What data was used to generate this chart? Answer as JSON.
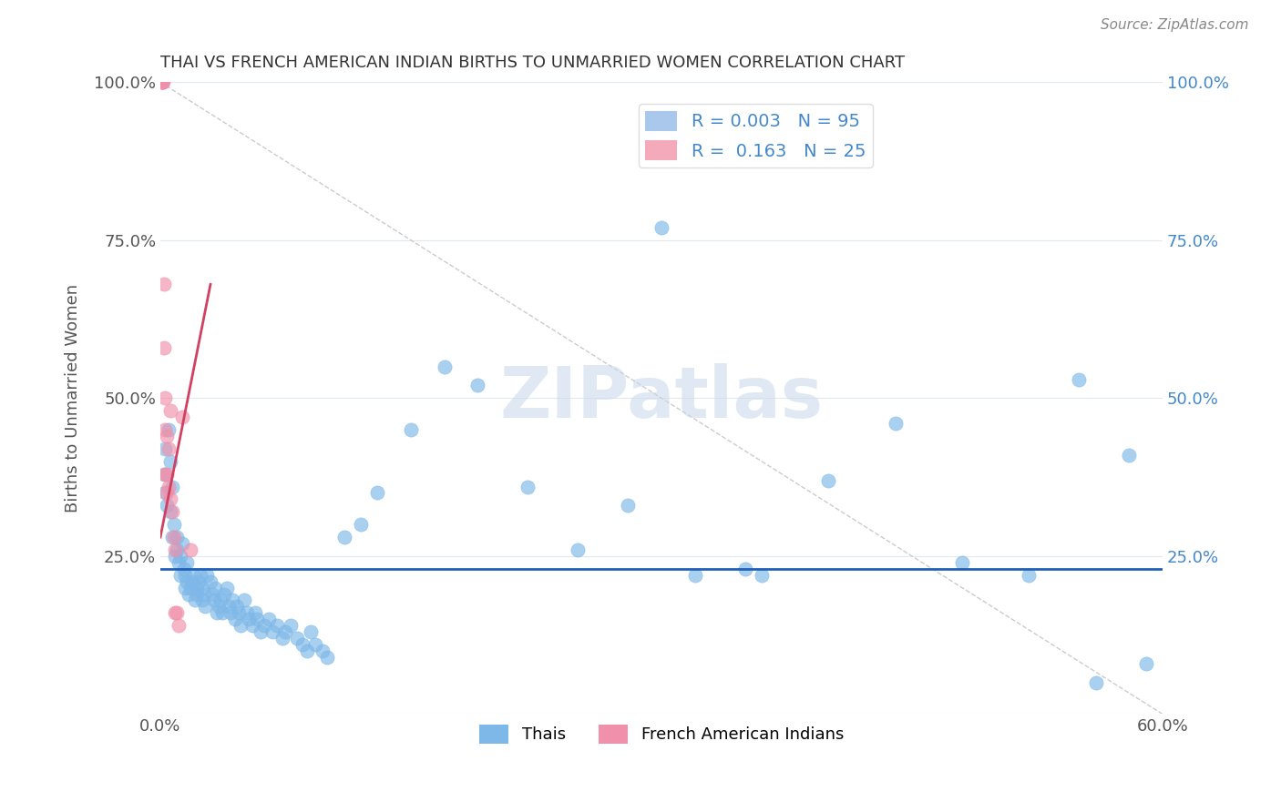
{
  "title": "THAI VS FRENCH AMERICAN INDIAN BIRTHS TO UNMARRIED WOMEN CORRELATION CHART",
  "source": "Source: ZipAtlas.com",
  "ylabel": "Births to Unmarried Women",
  "xlim": [
    0.0,
    60.0
  ],
  "ylim": [
    0.0,
    100.0
  ],
  "xtick_positions": [
    0.0,
    10.0,
    20.0,
    30.0,
    40.0,
    50.0,
    60.0
  ],
  "xtick_labels": [
    "0.0%",
    "",
    "",
    "",
    "",
    "",
    "60.0%"
  ],
  "ytick_positions": [
    0.0,
    25.0,
    50.0,
    75.0,
    100.0
  ],
  "ytick_labels_left": [
    "",
    "25.0%",
    "50.0%",
    "75.0%",
    "100.0%"
  ],
  "ytick_labels_right": [
    "",
    "25.0%",
    "50.0%",
    "75.0%",
    "100.0%"
  ],
  "thai_color": "#7db8e8",
  "fai_color": "#f090aa",
  "thai_trend_y": 23.0,
  "thai_trend_color": "#2060b8",
  "fai_trend_x0": 0.0,
  "fai_trend_y0": 28.0,
  "fai_trend_x1": 3.0,
  "fai_trend_y1": 68.0,
  "fai_trend_color": "#d04060",
  "diag_x0": 0.0,
  "diag_y0": 100.0,
  "diag_x1": 60.0,
  "diag_y1": 0.0,
  "diag_color": "#cccccc",
  "grid_color": "#e0e8f0",
  "watermark_text": "ZIPatlas",
  "watermark_color": "#c8d8ea",
  "legend_box_items": [
    {
      "label": "R = 0.003   N = 95",
      "color": "#aac8ec"
    },
    {
      "label": "R =  0.163   N = 25",
      "color": "#f4aabb"
    }
  ],
  "legend_label_color": "#4488cc",
  "bottom_legend_labels": [
    "Thais",
    "French American Indians"
  ],
  "thai_x": [
    0.2,
    0.3,
    0.3,
    0.4,
    0.5,
    0.6,
    0.6,
    0.7,
    0.7,
    0.8,
    0.9,
    1.0,
    1.0,
    1.1,
    1.2,
    1.2,
    1.3,
    1.4,
    1.5,
    1.5,
    1.6,
    1.6,
    1.7,
    1.8,
    1.9,
    2.0,
    2.1,
    2.2,
    2.2,
    2.3,
    2.4,
    2.5,
    2.5,
    2.6,
    2.7,
    2.8,
    3.0,
    3.1,
    3.2,
    3.3,
    3.4,
    3.5,
    3.6,
    3.7,
    3.8,
    4.0,
    4.1,
    4.2,
    4.3,
    4.5,
    4.6,
    4.7,
    4.8,
    5.0,
    5.2,
    5.3,
    5.5,
    5.7,
    5.8,
    6.0,
    6.2,
    6.5,
    6.7,
    7.0,
    7.3,
    7.5,
    7.8,
    8.2,
    8.5,
    8.8,
    9.0,
    9.3,
    9.7,
    10.0,
    11.0,
    12.0,
    13.0,
    15.0,
    17.0,
    19.0,
    22.0,
    25.0,
    28.0,
    32.0,
    36.0,
    40.0,
    44.0,
    48.0,
    52.0,
    56.0,
    30.0,
    35.0,
    55.0,
    58.0,
    59.0
  ],
  "thai_y": [
    38.0,
    42.0,
    35.0,
    33.0,
    45.0,
    40.0,
    32.0,
    36.0,
    28.0,
    30.0,
    25.0,
    26.0,
    28.0,
    24.0,
    22.0,
    25.0,
    27.0,
    23.0,
    20.0,
    22.0,
    21.0,
    24.0,
    19.0,
    20.0,
    21.0,
    22.0,
    18.0,
    19.0,
    20.0,
    21.0,
    22.0,
    18.0,
    20.0,
    19.0,
    17.0,
    22.0,
    21.0,
    19.0,
    18.0,
    20.0,
    16.0,
    17.0,
    18.0,
    16.0,
    19.0,
    20.0,
    17.0,
    16.0,
    18.0,
    15.0,
    17.0,
    16.0,
    14.0,
    18.0,
    16.0,
    15.0,
    14.0,
    16.0,
    15.0,
    13.0,
    14.0,
    15.0,
    13.0,
    14.0,
    12.0,
    13.0,
    14.0,
    12.0,
    11.0,
    10.0,
    13.0,
    11.0,
    10.0,
    9.0,
    28.0,
    30.0,
    35.0,
    45.0,
    55.0,
    52.0,
    36.0,
    26.0,
    33.0,
    22.0,
    22.0,
    37.0,
    46.0,
    24.0,
    22.0,
    5.0,
    77.0,
    23.0,
    53.0,
    41.0,
    8.0
  ],
  "fai_x": [
    0.1,
    0.1,
    0.1,
    0.1,
    0.15,
    0.2,
    0.2,
    0.3,
    0.3,
    0.3,
    0.4,
    0.4,
    0.4,
    0.5,
    0.5,
    0.6,
    0.6,
    0.7,
    0.8,
    0.9,
    0.9,
    1.0,
    1.1,
    1.3,
    1.8
  ],
  "fai_y": [
    100.0,
    100.0,
    100.0,
    100.0,
    100.0,
    68.0,
    58.0,
    45.0,
    50.0,
    38.0,
    44.0,
    38.0,
    35.0,
    42.0,
    36.0,
    34.0,
    48.0,
    32.0,
    28.0,
    26.0,
    16.0,
    16.0,
    14.0,
    47.0,
    26.0
  ]
}
